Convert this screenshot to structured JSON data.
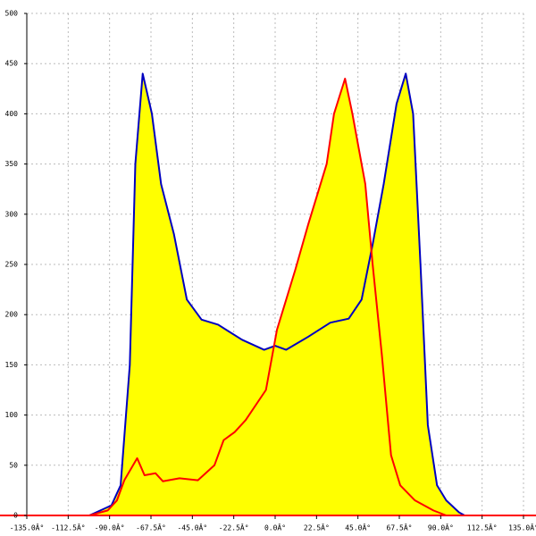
{
  "chart_data": {
    "type": "line",
    "xlim": [
      -135,
      135
    ],
    "xticks": [
      {
        "value": -135,
        "label": "-135.0Â°"
      },
      {
        "value": -112.5,
        "label": "-112.5Â°"
      },
      {
        "value": -90,
        "label": "-90.0Â°"
      },
      {
        "value": -67.5,
        "label": "-67.5Â°"
      },
      {
        "value": -45,
        "label": "-45.0Â°"
      },
      {
        "value": -22.5,
        "label": "-22.5Â°"
      },
      {
        "value": 0,
        "label": "0.0Â°"
      },
      {
        "value": 22.5,
        "label": "22.5Â°"
      },
      {
        "value": 45,
        "label": "45.0Â°"
      },
      {
        "value": 67.5,
        "label": "67.5Â°"
      },
      {
        "value": 90,
        "label": "90.0Â°"
      },
      {
        "value": 112.5,
        "label": "112.5Â°"
      },
      {
        "value": 135,
        "label": "135.0Â°"
      }
    ],
    "ylim": [
      0,
      500
    ],
    "yticks": [
      0,
      50,
      100,
      150,
      200,
      250,
      300,
      350,
      400,
      450,
      500
    ],
    "grid": true,
    "series": [
      {
        "color": "#0000c0",
        "fill": "#ffff00",
        "x": [
          -101,
          -89,
          -84,
          -79,
          -76,
          -72,
          -67,
          -62,
          -55,
          -48,
          -40,
          -31,
          -18,
          -6,
          0,
          6,
          18,
          30,
          40,
          47,
          53,
          59,
          66,
          71,
          75,
          79,
          83,
          88,
          93,
          100,
          103
        ],
        "values": [
          0,
          10,
          30,
          150,
          350,
          440,
          400,
          330,
          280,
          215,
          195,
          190,
          175,
          165,
          169,
          165,
          178,
          192,
          196,
          215,
          270,
          330,
          410,
          440,
          400,
          250,
          90,
          30,
          15,
          3,
          0
        ]
      },
      {
        "color": "#ff0000",
        "fill": "#ffff00",
        "x": [
          -101,
          -91,
          -86,
          -82,
          -75,
          -71,
          -65,
          -61,
          -52,
          -42,
          -33,
          -28,
          -22,
          -16,
          -5,
          1,
          11,
          18,
          28,
          32,
          38,
          42,
          49,
          53,
          58,
          63,
          68,
          76,
          86,
          93
        ],
        "values": [
          0,
          5,
          15,
          35,
          57,
          40,
          42,
          34,
          37,
          35,
          50,
          75,
          83,
          95,
          125,
          185,
          245,
          290,
          350,
          400,
          435,
          400,
          330,
          250,
          160,
          60,
          30,
          15,
          5,
          0
        ]
      }
    ]
  }
}
